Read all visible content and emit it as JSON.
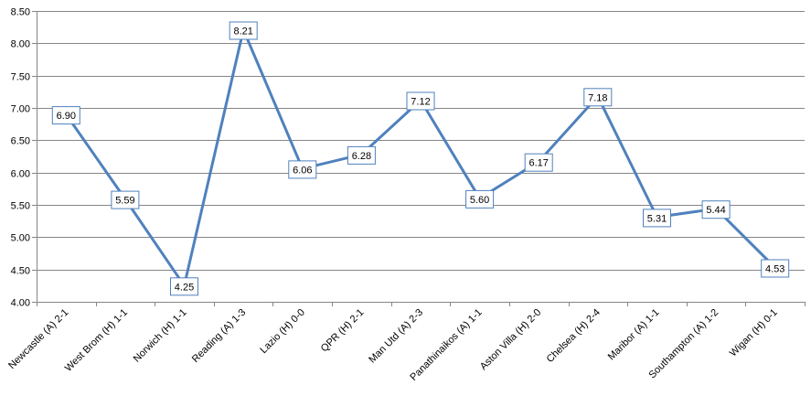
{
  "chart_data": {
    "type": "line",
    "title": "",
    "xlabel": "",
    "ylabel": "",
    "ylim": [
      4.0,
      8.5
    ],
    "ytick_step": 0.5,
    "grid": true,
    "legend": "none",
    "line_color": "#4f81bd",
    "categories": [
      "Newcastle (A) 2-1",
      "West Brom (H) 1-1",
      "Norwich (H) 1-1",
      "Reading (A) 1-3",
      "Lazio (H) 0-0",
      "QPR (H) 2-1",
      "Man Utd (A) 2-3",
      "Panathinaikos (A) 1-1",
      "Aston Villa (H) 2-0",
      "Chelsea (H) 2-4",
      "Maribor (A) 1-1",
      "Southampton (A) 1-2",
      "Wigan (H) 0-1"
    ],
    "values": [
      6.9,
      5.59,
      4.25,
      8.21,
      6.06,
      6.28,
      7.12,
      5.6,
      6.17,
      7.18,
      5.31,
      5.44,
      4.53
    ],
    "value_labels": [
      "6.90",
      "5.59",
      "4.25",
      "8.21",
      "6.06",
      "6.28",
      "7.12",
      "5.60",
      "6.17",
      "7.18",
      "5.31",
      "5.44",
      "4.53"
    ]
  }
}
